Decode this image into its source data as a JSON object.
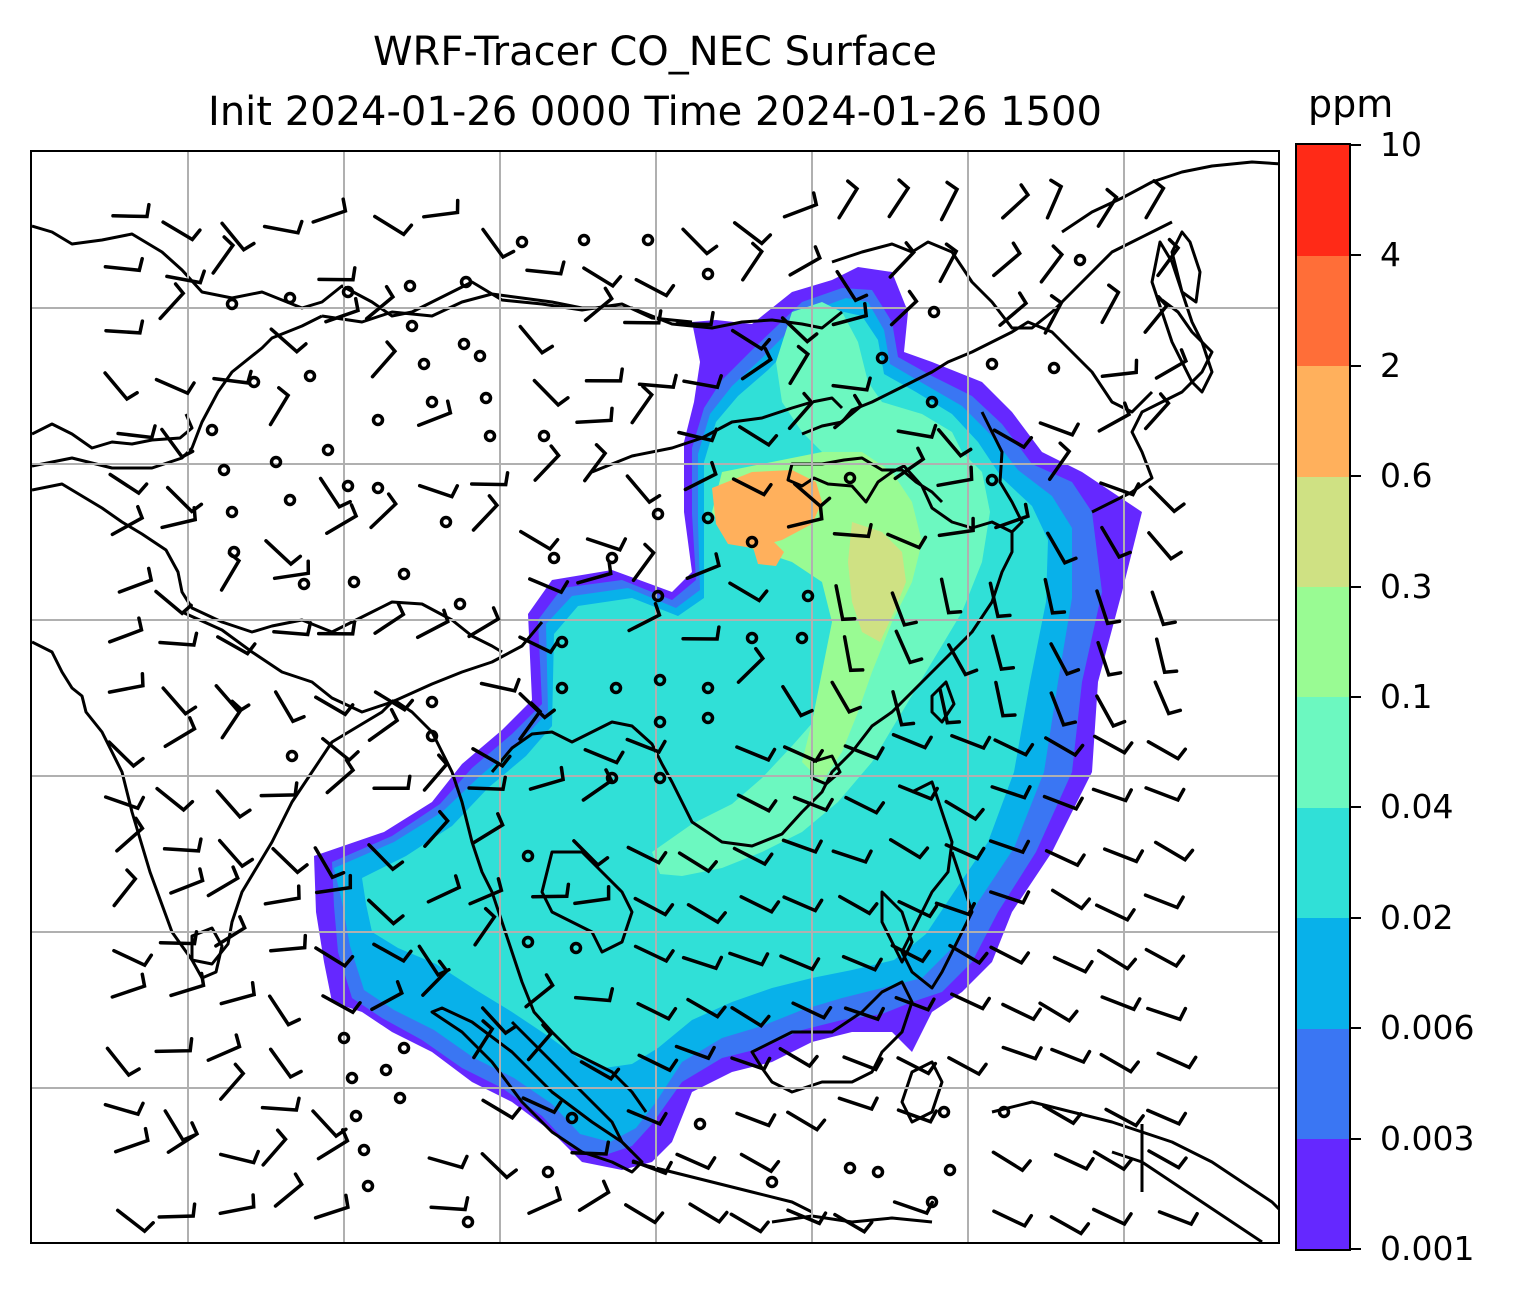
{
  "title": {
    "line1": "WRF-Tracer CO_NEC Surface",
    "line2": "Init 2024-01-26 0000 Time 2024-01-26 1500"
  },
  "colorbar": {
    "unit": "ppm",
    "tick_labels": [
      "0.001",
      "0.003",
      "0.006",
      "0.02",
      "0.04",
      "0.1",
      "0.3",
      "0.6",
      "2",
      "4",
      "10"
    ],
    "colors": [
      "#6528ff",
      "#3a76f3",
      "#08b1ea",
      "#30e0d7",
      "#6cf8c0",
      "#99fb93",
      "#cfe183",
      "#ffb05c",
      "#ff6e38",
      "#ff2a17"
    ]
  },
  "map": {
    "field": "CO_NEC surface concentration",
    "wind_symbols": "wind barbs; open circles = calm",
    "gridlines": true,
    "plume_colors": {
      "edge": "#6528ff",
      "outer": "#3a76f3",
      "blue": "#08b1ea",
      "cyan": "#30e0d7",
      "mint": "#6cf8c0",
      "green": "#99fb93",
      "yellowgreen": "#cfe183",
      "orange": "#ffb05c"
    }
  }
}
